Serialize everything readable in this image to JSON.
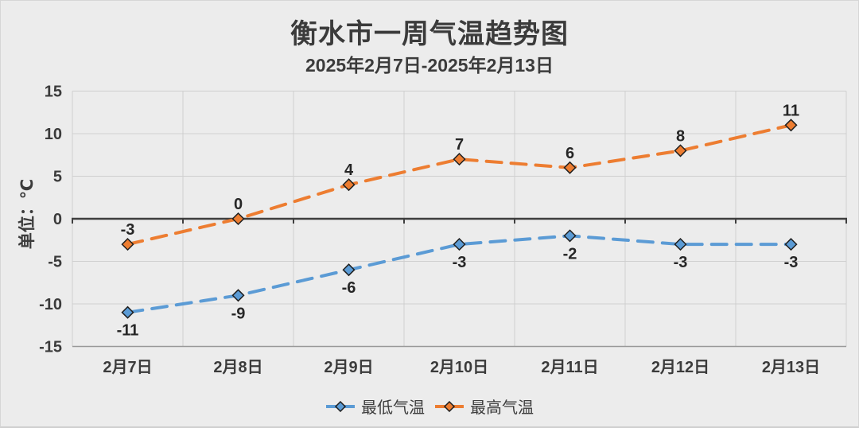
{
  "page": {
    "background": "#ECECEC",
    "card_border": "#D6D6D6"
  },
  "chart_data": {
    "type": "line",
    "title": "衡水市一周气温趋势图",
    "subtitle": "2025年2月7日-2025年2月13日",
    "ylabel": "单位：℃",
    "xlabel": "",
    "categories": [
      "2月7日",
      "2月8日",
      "2月9日",
      "2月10日",
      "2月11日",
      "2月12日",
      "2月13日"
    ],
    "series": [
      {
        "name": "最低气温",
        "color": "#5B9BD5",
        "values": [
          -11,
          -9,
          -6,
          -3,
          -2,
          -3,
          -3
        ],
        "line_style": "dashed",
        "marker": "diamond",
        "label_position": "below"
      },
      {
        "name": "最高气温",
        "color": "#ED7D31",
        "values": [
          -3,
          0,
          4,
          7,
          6,
          8,
          11
        ],
        "line_style": "dashed",
        "marker": "diamond",
        "label_position": "above"
      }
    ],
    "ylim": [
      -15,
      15
    ],
    "yticks": [
      15,
      10,
      5,
      0,
      -5,
      -10,
      -15
    ],
    "grid": true,
    "legend_position": "bottom",
    "style": {
      "gridline_color": "#CFCFCF",
      "zero_axis_color": "#3F3F3F",
      "bottom_axis_color": "#999999",
      "marker_outline_color": "#1F1F1F",
      "data_label_color": "#262626",
      "axis_label_color": "#3B3B3B"
    }
  }
}
